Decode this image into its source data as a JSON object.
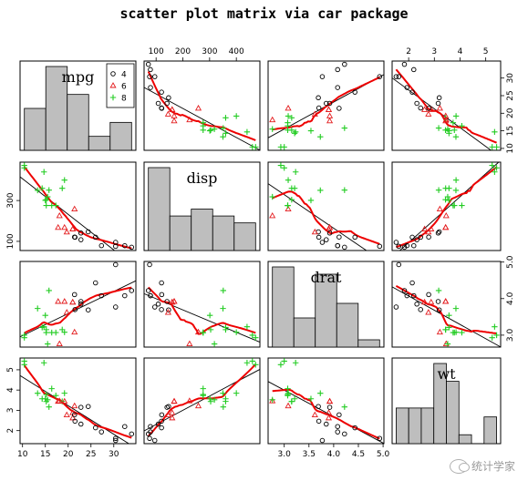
{
  "title": "scatter plot matrix via car package",
  "watermark": "统计学家",
  "legend": {
    "entries": [
      {
        "label": "4",
        "symbol": "circle",
        "color": "#000000"
      },
      {
        "label": "6",
        "symbol": "triangle",
        "color": "#e31a1c"
      },
      {
        "label": "8",
        "symbol": "plus",
        "color": "#22cc22"
      }
    ]
  },
  "colors": {
    "smooth": "#ee0000",
    "fit": "#000000",
    "bars": "#bebebe"
  },
  "chart_data": {
    "type": "scatter",
    "variables": [
      "mpg",
      "disp",
      "drat",
      "wt"
    ],
    "ranges": {
      "mpg": [
        10.4,
        33.9
      ],
      "disp": [
        71.1,
        472
      ],
      "drat": [
        2.76,
        4.93
      ],
      "wt": [
        1.513,
        5.424
      ]
    },
    "ticks": {
      "mpg": {
        "values": [
          10,
          15,
          20,
          25,
          30
        ],
        "labels": [
          "10",
          "15",
          "20",
          "25",
          "30"
        ]
      },
      "disp": {
        "values": [
          100,
          200,
          300,
          400
        ],
        "labels": [
          "100",
          "200",
          "300",
          "400"
        ]
      },
      "drat": {
        "values": [
          3.0,
          3.5,
          4.0,
          4.5,
          5.0
        ],
        "labels": [
          "3.0",
          "3.5",
          "4.0",
          "4.5",
          "5.0"
        ]
      },
      "wt": {
        "values": [
          2,
          3,
          4,
          5
        ],
        "labels": [
          "2",
          "3",
          "4",
          "5"
        ]
      }
    },
    "right_ticks": {
      "mpg": {
        "values": [
          10,
          15,
          20,
          25,
          30
        ],
        "labels": [
          "10",
          "15",
          "20",
          "25",
          "30"
        ]
      },
      "drat": {
        "values": [
          3.0,
          4.0,
          5.0
        ],
        "labels": [
          "3.0",
          "4.0",
          "5.0"
        ]
      }
    },
    "left_ticks": {
      "disp": {
        "values": [
          100,
          300
        ],
        "labels": [
          "100",
          "300"
        ]
      },
      "wt": {
        "values": [
          2,
          3,
          4,
          5
        ],
        "labels": [
          "2",
          "3",
          "4",
          "5"
        ]
      }
    },
    "groups": [
      "4",
      "6",
      "8"
    ],
    "observations": [
      {
        "g": "6",
        "mpg": 21.0,
        "disp": 160,
        "drat": 3.9,
        "wt": 2.62
      },
      {
        "g": "6",
        "mpg": 21.0,
        "disp": 160,
        "drat": 3.9,
        "wt": 2.875
      },
      {
        "g": "4",
        "mpg": 22.8,
        "disp": 108,
        "drat": 3.85,
        "wt": 2.32
      },
      {
        "g": "6",
        "mpg": 21.4,
        "disp": 258,
        "drat": 3.08,
        "wt": 3.215
      },
      {
        "g": "8",
        "mpg": 18.7,
        "disp": 360,
        "drat": 3.15,
        "wt": 3.44
      },
      {
        "g": "6",
        "mpg": 18.1,
        "disp": 225,
        "drat": 2.76,
        "wt": 3.46
      },
      {
        "g": "8",
        "mpg": 14.3,
        "disp": 360,
        "drat": 3.21,
        "wt": 3.57
      },
      {
        "g": "4",
        "mpg": 24.4,
        "disp": 146.7,
        "drat": 3.69,
        "wt": 3.19
      },
      {
        "g": "4",
        "mpg": 22.8,
        "disp": 140.8,
        "drat": 3.92,
        "wt": 3.15
      },
      {
        "g": "6",
        "mpg": 19.2,
        "disp": 167.6,
        "drat": 3.92,
        "wt": 3.44
      },
      {
        "g": "6",
        "mpg": 17.8,
        "disp": 167.6,
        "drat": 3.92,
        "wt": 3.44
      },
      {
        "g": "8",
        "mpg": 16.4,
        "disp": 275.8,
        "drat": 3.07,
        "wt": 4.07
      },
      {
        "g": "8",
        "mpg": 17.3,
        "disp": 275.8,
        "drat": 3.07,
        "wt": 3.73
      },
      {
        "g": "8",
        "mpg": 15.2,
        "disp": 275.8,
        "drat": 3.07,
        "wt": 3.78
      },
      {
        "g": "8",
        "mpg": 10.4,
        "disp": 472,
        "drat": 2.93,
        "wt": 5.25
      },
      {
        "g": "8",
        "mpg": 10.4,
        "disp": 460,
        "drat": 3.0,
        "wt": 5.424
      },
      {
        "g": "8",
        "mpg": 14.7,
        "disp": 440,
        "drat": 3.23,
        "wt": 5.345
      },
      {
        "g": "4",
        "mpg": 32.4,
        "disp": 78.7,
        "drat": 4.08,
        "wt": 2.2
      },
      {
        "g": "4",
        "mpg": 30.4,
        "disp": 75.7,
        "drat": 4.93,
        "wt": 1.615
      },
      {
        "g": "4",
        "mpg": 33.9,
        "disp": 71.1,
        "drat": 4.22,
        "wt": 1.835
      },
      {
        "g": "4",
        "mpg": 21.5,
        "disp": 120.1,
        "drat": 3.7,
        "wt": 2.465
      },
      {
        "g": "8",
        "mpg": 15.5,
        "disp": 318,
        "drat": 2.76,
        "wt": 3.52
      },
      {
        "g": "8",
        "mpg": 15.2,
        "disp": 304,
        "drat": 3.15,
        "wt": 3.435
      },
      {
        "g": "8",
        "mpg": 13.3,
        "disp": 350,
        "drat": 3.73,
        "wt": 3.84
      },
      {
        "g": "8",
        "mpg": 19.2,
        "disp": 400,
        "drat": 3.08,
        "wt": 3.845
      },
      {
        "g": "4",
        "mpg": 27.3,
        "disp": 79,
        "drat": 4.08,
        "wt": 1.935
      },
      {
        "g": "4",
        "mpg": 26.0,
        "disp": 120.3,
        "drat": 4.43,
        "wt": 2.14
      },
      {
        "g": "4",
        "mpg": 30.4,
        "disp": 95.1,
        "drat": 3.77,
        "wt": 1.513
      },
      {
        "g": "8",
        "mpg": 15.8,
        "disp": 351,
        "drat": 4.22,
        "wt": 3.17
      },
      {
        "g": "6",
        "mpg": 19.7,
        "disp": 145,
        "drat": 3.62,
        "wt": 2.77
      },
      {
        "g": "8",
        "mpg": 15.0,
        "disp": 301,
        "drat": 3.54,
        "wt": 3.57
      },
      {
        "g": "4",
        "mpg": 21.4,
        "disp": 121,
        "drat": 4.11,
        "wt": 2.78
      }
    ]
  }
}
